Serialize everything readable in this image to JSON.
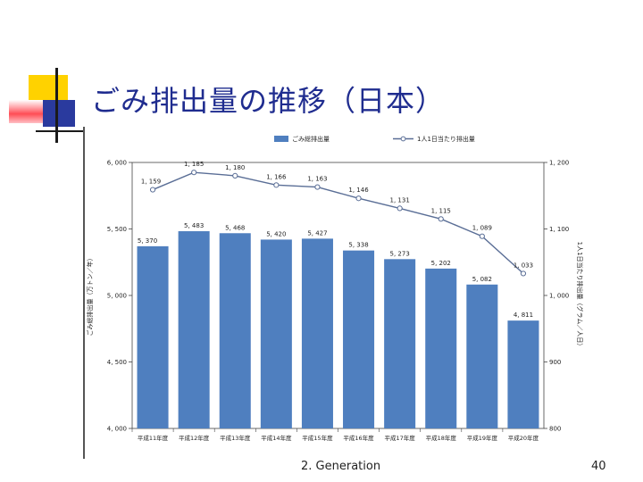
{
  "slide": {
    "title": "ごみ排出量の推移（日本）",
    "footer": "2. Generation",
    "page_number": "40"
  },
  "colors": {
    "bar": "#4f7fbf",
    "line": "#5a6e96",
    "title": "#1f2c8f"
  },
  "chart_data": {
    "type": "bar",
    "categories": [
      "平成11年度",
      "平成12年度",
      "平成13年度",
      "平成14年度",
      "平成15年度",
      "平成16年度",
      "平成17年度",
      "平成18年度",
      "平成19年度",
      "平成20年度"
    ],
    "series": [
      {
        "name": "ごみ総排出量",
        "type": "bar",
        "axis": "left",
        "values": [
          5370,
          5483,
          5468,
          5420,
          5427,
          5338,
          5273,
          5202,
          5082,
          4811
        ],
        "labels": [
          "5, 370",
          "5, 483",
          "5, 468",
          "5, 420",
          "5, 427",
          "5, 338",
          "5, 273",
          "5, 202",
          "5, 082",
          "4, 811"
        ]
      },
      {
        "name": "1人1日当たり排出量",
        "type": "line",
        "axis": "right",
        "values": [
          1159,
          1185,
          1180,
          1166,
          1163,
          1146,
          1131,
          1115,
          1089,
          1033
        ],
        "labels": [
          "1, 159",
          "1, 185",
          "1, 180",
          "1, 166",
          "1, 163",
          "1, 146",
          "1, 131",
          "1, 115",
          "1, 089",
          "1, 033"
        ]
      }
    ],
    "y_left": {
      "label": "ごみ総排出量（万トン／年）",
      "ylim": [
        4000,
        6000
      ],
      "ticks": [
        "4, 000",
        "4, 500",
        "5, 000",
        "5, 500",
        "6, 000"
      ],
      "tick_values": [
        4000,
        4500,
        5000,
        5500,
        6000
      ]
    },
    "y_right": {
      "label": "1人1日当たり排出量（グラム／人日）",
      "ylim": [
        800,
        1200
      ],
      "ticks": [
        "800",
        "900",
        "1, 000",
        "1, 100",
        "1, 200"
      ],
      "tick_values": [
        800,
        900,
        1000,
        1100,
        1200
      ]
    },
    "legend": {
      "position": "top-center"
    },
    "grid": false
  }
}
